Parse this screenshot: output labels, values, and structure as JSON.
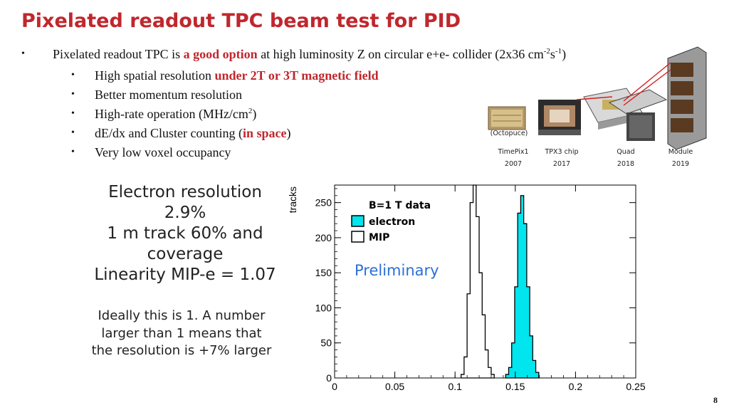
{
  "slide": {
    "title": "Pixelated readout TPC beam test for PID",
    "page_number": "8"
  },
  "bullets": {
    "main": {
      "marker": "•",
      "prefix": "Pixelated readout TPC is ",
      "highlight": "a good option",
      "suffix": " at high luminosity Z on circular e+e- collider (2x36 cm",
      "sup1": "-2",
      "mid": "s",
      "sup2": "-1",
      "end": ")"
    },
    "items": [
      {
        "marker": "•",
        "text": "High spatial resolution ",
        "highlight": "under 2T or 3T magnetic field"
      },
      {
        "marker": "•",
        "text": "Better momentum resolution"
      },
      {
        "marker": "•",
        "text": "High-rate operation (MHz/cm",
        "sup": "2",
        "end": ")"
      },
      {
        "marker": "•",
        "text": "dE/dx and Cluster counting (",
        "highlight": "in space",
        "end": ")"
      },
      {
        "marker": "•",
        "text": "Very low voxel occupancy"
      }
    ]
  },
  "summary": {
    "lines": [
      "Electron resolution",
      "2.9%",
      "1 m track 60% and",
      "coverage",
      "Linearity MIP-e = 1.07"
    ],
    "note_lines": [
      "Ideally this is 1. A number",
      "larger than 1 means that",
      "the resolution is +7% larger"
    ]
  },
  "timeline": {
    "octopuce_label": "(Octopuce)",
    "stages": [
      {
        "name": "TimePix1",
        "year": "2007"
      },
      {
        "name": "TPX3 chip",
        "year": "2017"
      },
      {
        "name": "Quad",
        "year": "2018"
      },
      {
        "name": "Module",
        "year": "2019"
      }
    ]
  },
  "chart_data": {
    "type": "histogram",
    "ylabel": "tracks",
    "xlim": [
      0,
      0.25
    ],
    "ylim": [
      0,
      275
    ],
    "x_ticks": [
      "0",
      "0.05",
      "0.1",
      "0.15",
      "0.2",
      "0.25"
    ],
    "y_ticks": [
      "0",
      "50",
      "100",
      "150",
      "200",
      "250"
    ],
    "legend_title": "B=1 T data",
    "annotation": "Preliminary",
    "annotation_color": "#2b6fd6",
    "series": [
      {
        "name": "MIP",
        "fill": "#ffffff",
        "bin_width": 0.0025,
        "bins_start": 0.105,
        "counts": [
          5,
          30,
          120,
          250,
          275,
          230,
          150,
          90,
          40,
          15,
          5
        ]
      },
      {
        "name": "electron",
        "fill": "#00e5ee",
        "bin_width": 0.0025,
        "bins_start": 0.142,
        "counts": [
          5,
          15,
          50,
          130,
          235,
          260,
          220,
          130,
          60,
          25,
          8
        ]
      }
    ]
  }
}
